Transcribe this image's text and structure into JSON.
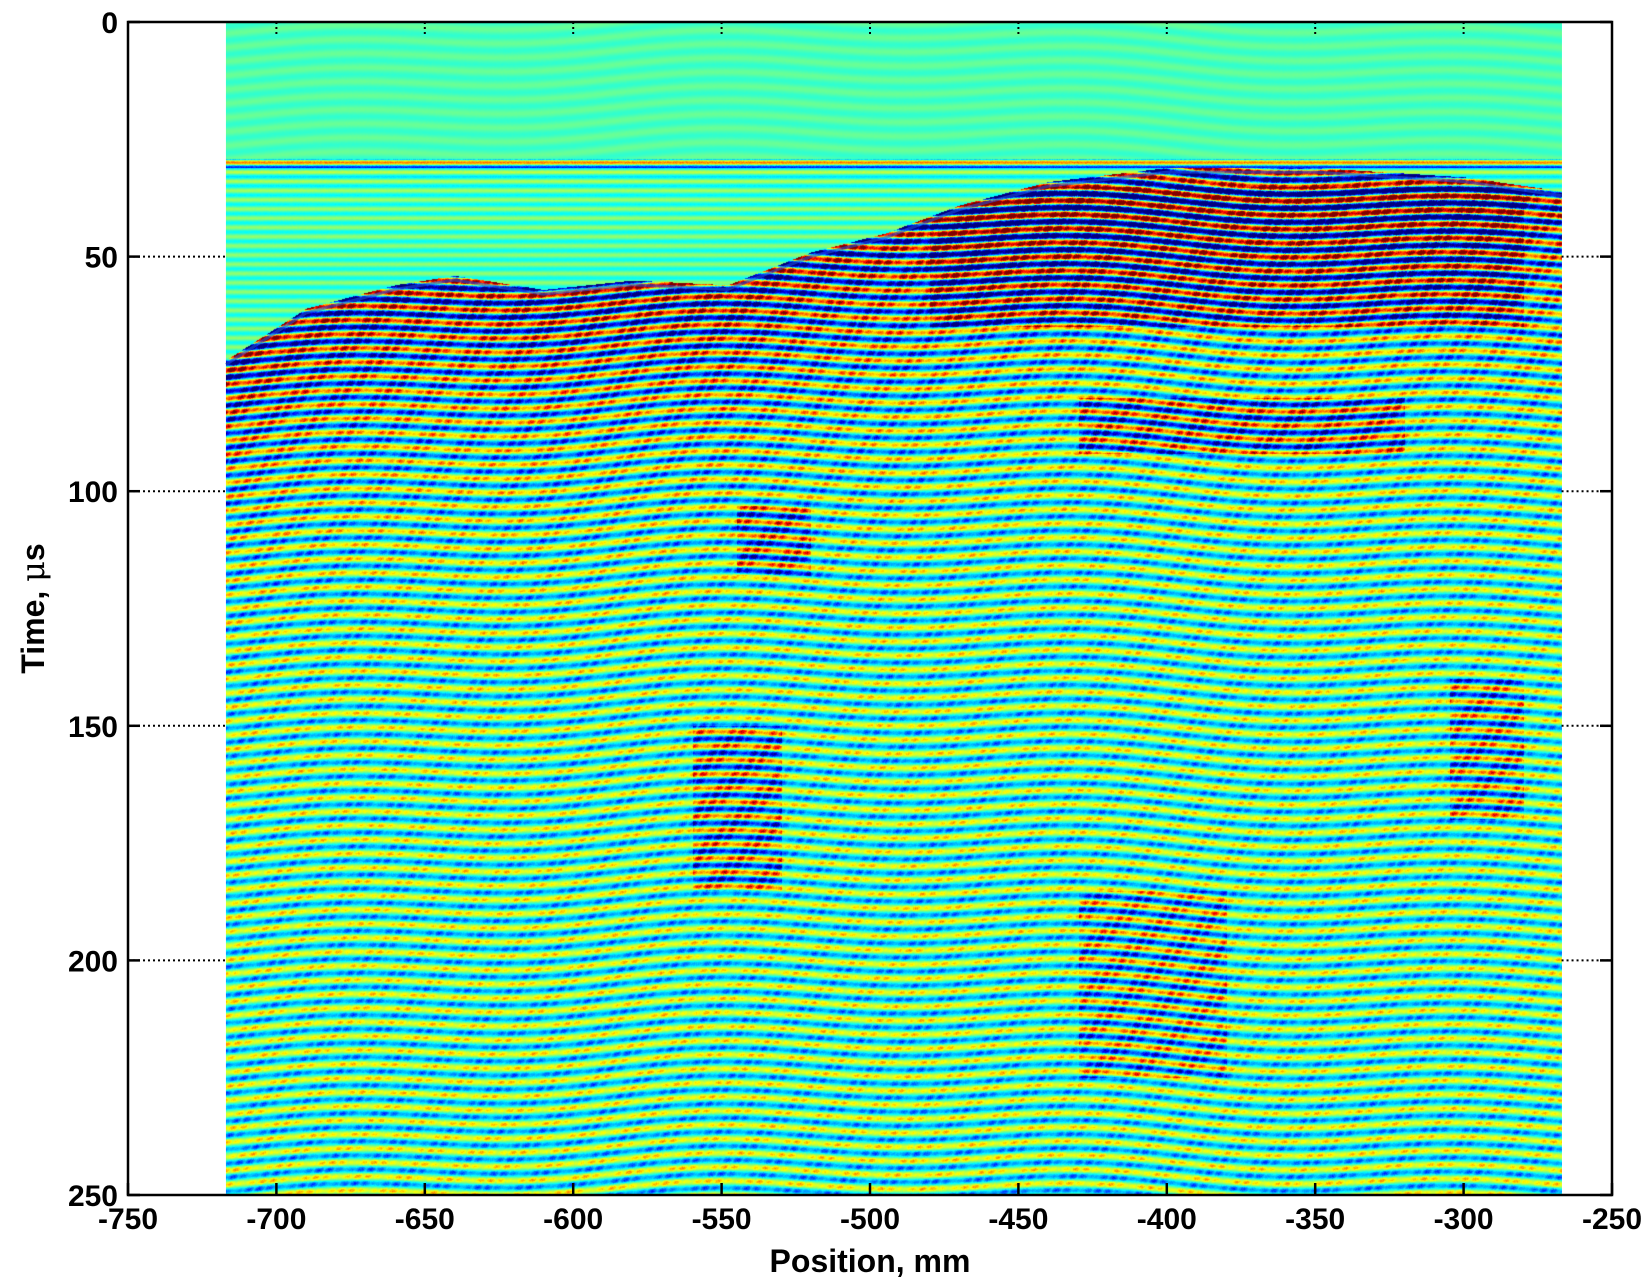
{
  "chart_data": {
    "type": "heatmap",
    "title": "",
    "xlabel": "Position, mm",
    "ylabel_prefix": "Time, ",
    "ylabel_greek": "μ",
    "ylabel_unit": "s",
    "xlim": [
      -750,
      -250
    ],
    "ylim": [
      0,
      250
    ],
    "y_reversed": true,
    "grid": "dotted, major ticks only",
    "colormap": "jet",
    "x_ticks": [
      {
        "value": -750,
        "label": "-750"
      },
      {
        "value": -700,
        "label": "-700"
      },
      {
        "value": -650,
        "label": "-650"
      },
      {
        "value": -600,
        "label": "-600"
      },
      {
        "value": -550,
        "label": "-550"
      },
      {
        "value": -500,
        "label": "-500"
      },
      {
        "value": -450,
        "label": "-450"
      },
      {
        "value": -400,
        "label": "-400"
      },
      {
        "value": -350,
        "label": "-350"
      },
      {
        "value": -300,
        "label": "-300"
      },
      {
        "value": -250,
        "label": "-250"
      }
    ],
    "y_ticks": [
      {
        "value": 0,
        "label": "0"
      },
      {
        "value": 50,
        "label": "50"
      },
      {
        "value": 100,
        "label": "100"
      },
      {
        "value": 150,
        "label": "150"
      },
      {
        "value": 200,
        "label": "200"
      },
      {
        "value": 250,
        "label": "250"
      }
    ],
    "image_extent": {
      "x": [
        -717,
        -267
      ],
      "y": [
        0,
        250
      ]
    },
    "front_surface_arrival": [
      {
        "x": -717,
        "t": 73
      },
      {
        "x": -690,
        "t": 62
      },
      {
        "x": -660,
        "t": 57
      },
      {
        "x": -640,
        "t": 55
      },
      {
        "x": -610,
        "t": 58
      },
      {
        "x": -580,
        "t": 56
      },
      {
        "x": -548,
        "t": 57
      },
      {
        "x": -520,
        "t": 50
      },
      {
        "x": -495,
        "t": 46
      },
      {
        "x": -470,
        "t": 40
      },
      {
        "x": -440,
        "t": 35
      },
      {
        "x": -400,
        "t": 32
      },
      {
        "x": -350,
        "t": 32
      },
      {
        "x": -300,
        "t": 34
      },
      {
        "x": -267,
        "t": 37
      }
    ],
    "bright_zones": [
      {
        "x": [
          -480,
          -280
        ],
        "t": [
          35,
          65
        ],
        "strength": 0.95
      },
      {
        "x": [
          -430,
          -320
        ],
        "t": [
          80,
          92
        ],
        "strength": 0.85
      },
      {
        "x": [
          -545,
          -520
        ],
        "t": [
          103,
          118
        ],
        "strength": 0.8
      },
      {
        "x": [
          -560,
          -530
        ],
        "t": [
          150,
          185
        ],
        "strength": 0.8
      },
      {
        "x": [
          -305,
          -280
        ],
        "t": [
          140,
          170
        ],
        "strength": 0.7
      },
      {
        "x": [
          -430,
          -380
        ],
        "t": [
          185,
          225
        ],
        "strength": 0.6
      }
    ],
    "colors": {
      "background": "#8aee78",
      "axis": "#000000",
      "grid": "#000000"
    }
  }
}
